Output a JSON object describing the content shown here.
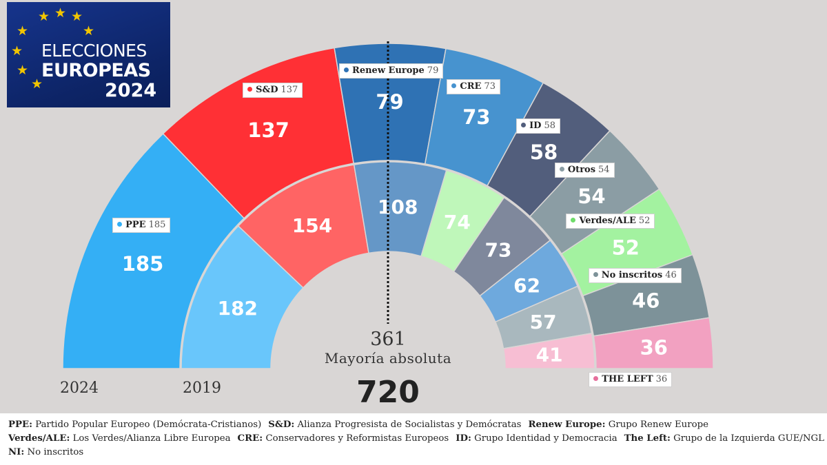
{
  "logo": {
    "line1": "ELECCIONES",
    "line2": "EUROPEAS",
    "line3": "2024",
    "background": "#0f2a78",
    "star_color": "#f2c500"
  },
  "chart_data": {
    "type": "parliament",
    "total_seats": 720,
    "majority": 361,
    "majority_label": "Mayoría absoluta",
    "rings": [
      {
        "year": "2024",
        "series": [
          {
            "name": "PPE",
            "value": 185,
            "color": "#34aff5"
          },
          {
            "name": "S&D",
            "value": 137,
            "color": "#ff3035"
          },
          {
            "name": "Renew Europe",
            "value": 79,
            "color": "#2f72b4"
          },
          {
            "name": "CRE",
            "value": 73,
            "color": "#4793cf"
          },
          {
            "name": "ID",
            "value": 58,
            "color": "#525e7c"
          },
          {
            "name": "Otros",
            "value": 54,
            "color": "#8b9da4"
          },
          {
            "name": "Verdes/ALE",
            "value": 52,
            "color": "#a3f2a0"
          },
          {
            "name": "No inscritos",
            "value": 46,
            "color": "#7d9299"
          },
          {
            "name": "THE LEFT",
            "value": 36,
            "color": "#f2a1c1"
          }
        ]
      },
      {
        "year": "2019",
        "series": [
          {
            "value": 182,
            "color": "#69c6fb"
          },
          {
            "value": 154,
            "color": "#ff6464"
          },
          {
            "value": 108,
            "color": "#6597c7"
          },
          {
            "value": 74,
            "color": "#bff7ba"
          },
          {
            "value": 73,
            "color": "#7f889c"
          },
          {
            "value": 62,
            "color": "#6ea9dd"
          },
          {
            "value": 57,
            "color": "#a9b8be"
          },
          {
            "value": 41,
            "color": "#f7bed3"
          }
        ]
      }
    ]
  },
  "legend": {
    "rows": [
      [
        {
          "key": "PPE:",
          "text": "Partido Popular Europeo (Demócrata-Cristianos)"
        },
        {
          "key": "S&D:",
          "text": "Alianza Progresista de Socialistas y Demócratas"
        },
        {
          "key": "Renew Europe:",
          "text": "Grupo Renew Europe"
        }
      ],
      [
        {
          "key": "Verdes/ALE:",
          "text": "Los Verdes/Alianza Libre Europea"
        },
        {
          "key": "CRE:",
          "text": "Conservadores y Reformistas Europeos"
        },
        {
          "key": "ID:",
          "text": "Grupo Identidad y Democracia"
        },
        {
          "key": "The Left:",
          "text": "Grupo de la Izquierda GUE/NGL"
        }
      ],
      [
        {
          "key": "NI:",
          "text": "No inscritos"
        }
      ]
    ]
  }
}
